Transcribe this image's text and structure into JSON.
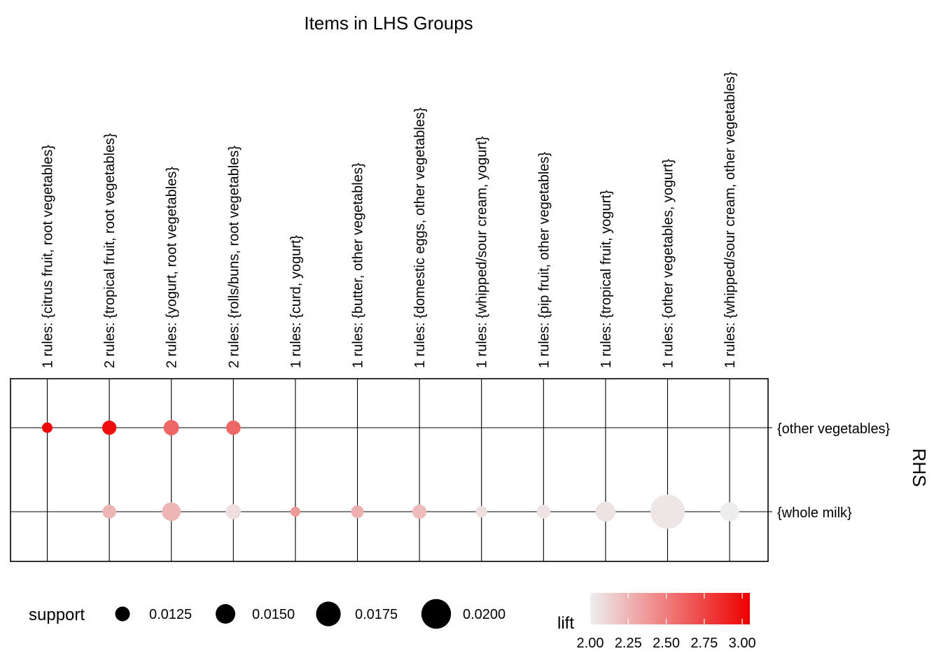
{
  "chart_data": {
    "type": "scatter",
    "title": "Items in LHS Groups",
    "xlabel": "",
    "ylabel": "RHS",
    "columns": [
      "1 rules: {citrus fruit, root vegetables}",
      "2 rules: {tropical fruit, root vegetables}",
      "2 rules: {yogurt, root vegetables}",
      "2 rules: {rolls/buns, root vegetables}",
      "1 rules: {curd, yogurt}",
      "1 rules: {butter, other vegetables}",
      "1 rules: {domestic eggs, other vegetables}",
      "1 rules: {whipped/sour cream, yogurt}",
      "1 rules: {pip fruit, other vegetables}",
      "1 rules: {tropical fruit, yogurt}",
      "1 rules: {other vegetables, yogurt}",
      "1 rules: {whipped/sour cream, other vegetables}"
    ],
    "rows": [
      "{other vegetables}",
      "{whole milk}"
    ],
    "points": [
      {
        "col": 0,
        "row": 0,
        "support": 0.0104,
        "lift": 3.03
      },
      {
        "col": 1,
        "row": 0,
        "support": 0.0123,
        "lift": 2.99
      },
      {
        "col": 2,
        "row": 0,
        "support": 0.0129,
        "lift": 2.6
      },
      {
        "col": 3,
        "row": 0,
        "support": 0.0124,
        "lift": 2.6
      },
      {
        "col": 1,
        "row": 1,
        "support": 0.012,
        "lift": 2.25
      },
      {
        "col": 2,
        "row": 1,
        "support": 0.0145,
        "lift": 2.25
      },
      {
        "col": 3,
        "row": 1,
        "support": 0.0127,
        "lift": 2.07
      },
      {
        "col": 4,
        "row": 1,
        "support": 0.0101,
        "lift": 2.38
      },
      {
        "col": 5,
        "row": 1,
        "support": 0.0115,
        "lift": 2.28
      },
      {
        "col": 6,
        "row": 1,
        "support": 0.0123,
        "lift": 2.22
      },
      {
        "col": 7,
        "row": 1,
        "support": 0.0109,
        "lift": 2.07
      },
      {
        "col": 8,
        "row": 1,
        "support": 0.012,
        "lift": 2.05
      },
      {
        "col": 9,
        "row": 1,
        "support": 0.0151,
        "lift": 2.05
      },
      {
        "col": 10,
        "row": 1,
        "support": 0.0223,
        "lift": 2.04
      },
      {
        "col": 11,
        "row": 1,
        "support": 0.0146,
        "lift": 2.01
      }
    ],
    "size_legend": {
      "title": "support",
      "breaks": [
        0.0125,
        0.015,
        0.0175,
        0.02
      ],
      "labels": [
        "0.0125",
        "0.0150",
        "0.0175",
        "0.0200"
      ]
    },
    "color_legend": {
      "title": "lift",
      "range": [
        2.0,
        3.05
      ],
      "breaks": [
        2.0,
        2.25,
        2.5,
        2.75,
        3.0
      ],
      "labels": [
        "2.00",
        "2.25",
        "2.50",
        "2.75",
        "3.00"
      ],
      "low_color": "#eeeeee",
      "high_color": "#ee0000"
    },
    "grid": true,
    "legend_position": "bottom"
  }
}
